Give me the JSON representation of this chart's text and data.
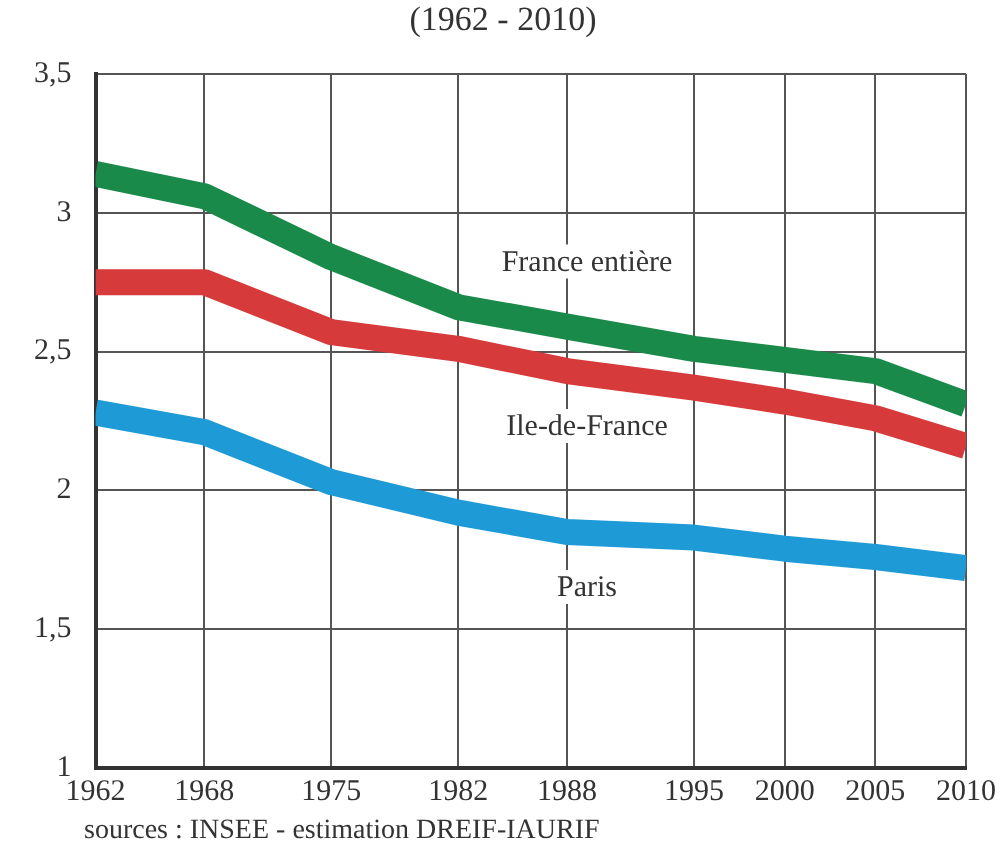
{
  "chart_data": {
    "type": "line",
    "title": "(1962 - 2010)",
    "x": [
      1962,
      1968,
      1975,
      1982,
      1988,
      1995,
      2000,
      2005,
      2010
    ],
    "xlim": [
      1962,
      2010
    ],
    "xticks": [
      1962,
      1968,
      1975,
      1982,
      1988,
      1995,
      2000,
      2005,
      2010
    ],
    "ylim": [
      1,
      3.5
    ],
    "yticks": [
      1,
      {
        "value": 1.5,
        "label": "1,5"
      },
      2,
      {
        "value": 2.5,
        "label": "2,5"
      },
      3,
      {
        "value": 3.5,
        "label": "3,5"
      }
    ],
    "series": [
      {
        "name": "France entière",
        "color": "#1a8a4a",
        "values": [
          3.14,
          3.06,
          2.84,
          2.66,
          2.59,
          2.51,
          2.47,
          2.43,
          2.31
        ]
      },
      {
        "name": "Ile-de-France",
        "color": "#d63a3a",
        "values": [
          2.75,
          2.75,
          2.57,
          2.51,
          2.43,
          2.37,
          2.32,
          2.26,
          2.16
        ]
      },
      {
        "name": "Paris",
        "color": "#1e9ad6",
        "values": [
          2.28,
          2.21,
          2.03,
          1.92,
          1.85,
          1.83,
          1.79,
          1.76,
          1.72
        ]
      }
    ],
    "grid": true,
    "legend": false,
    "marker": "none",
    "line_style": "solid",
    "annotations": [
      "sources : INSEE - estimation DREIF-IAURIF"
    ]
  }
}
